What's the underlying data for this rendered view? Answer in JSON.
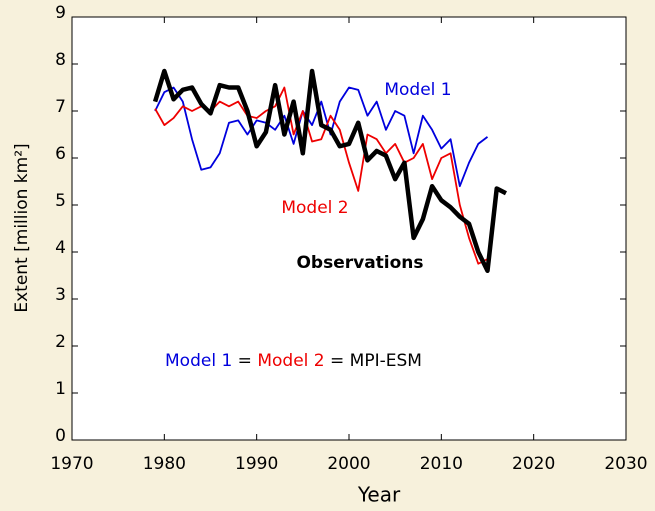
{
  "chart_data": {
    "type": "line",
    "xlabel": "Year",
    "ylabel": "Extent [million km²]",
    "x": [
      1979,
      1980,
      1981,
      1982,
      1983,
      1984,
      1985,
      1986,
      1987,
      1988,
      1989,
      1990,
      1991,
      1992,
      1993,
      1994,
      1995,
      1996,
      1997,
      1998,
      1999,
      2000,
      2001,
      2002,
      2003,
      2004,
      2005,
      2006,
      2007,
      2008,
      2009,
      2010,
      2011,
      2012,
      2013,
      2014,
      2015,
      2016,
      2017
    ],
    "series": [
      {
        "name": "Model 1",
        "color": "#0000dd",
        "width": 1.8,
        "values": [
          7.0,
          7.4,
          7.5,
          7.2,
          6.4,
          5.75,
          5.8,
          6.1,
          6.75,
          6.8,
          6.5,
          6.8,
          6.75,
          6.6,
          6.9,
          6.3,
          7.0,
          6.7,
          7.2,
          6.5,
          7.2,
          7.5,
          7.45,
          6.9,
          7.2,
          6.6,
          7.0,
          6.9,
          6.1,
          6.9,
          6.6,
          6.2,
          6.4,
          5.4,
          5.9,
          6.3,
          6.45,
          null,
          null
        ]
      },
      {
        "name": "Model 2",
        "color": "#ee0000",
        "width": 1.8,
        "values": [
          7.05,
          6.7,
          6.85,
          7.1,
          7.0,
          7.1,
          7.0,
          7.2,
          7.1,
          7.2,
          6.9,
          6.85,
          7.0,
          7.1,
          7.5,
          6.5,
          7.0,
          6.35,
          6.4,
          6.9,
          6.6,
          5.9,
          5.3,
          6.5,
          6.4,
          6.1,
          6.3,
          5.9,
          6.0,
          6.3,
          5.55,
          6.0,
          6.1,
          5.0,
          4.3,
          3.75,
          3.85,
          null,
          null
        ]
      },
      {
        "name": "Observations",
        "color": "#000000",
        "width": 4.5,
        "values": [
          7.2,
          7.85,
          7.25,
          7.45,
          7.5,
          7.15,
          6.95,
          7.55,
          7.5,
          7.5,
          7.0,
          6.25,
          6.55,
          7.55,
          6.5,
          7.2,
          6.1,
          7.85,
          6.7,
          6.6,
          6.25,
          6.3,
          6.75,
          5.95,
          6.15,
          6.05,
          5.55,
          5.9,
          4.3,
          4.7,
          5.4,
          5.1,
          4.95,
          4.75,
          4.6,
          4.0,
          3.6,
          5.35,
          5.25
        ]
      }
    ],
    "annotations": [
      {
        "text": "Model 1",
        "color": "#0000dd"
      },
      {
        "text": "Model 2",
        "color": "#ee0000"
      },
      {
        "text": "Observations",
        "color": "#000000"
      }
    ],
    "footer": [
      "Model 1",
      " = ",
      "Model 2",
      " = MPI-ESM"
    ],
    "xlim": [
      1970,
      2030
    ],
    "xticks": [
      1970,
      1980,
      1990,
      2000,
      2010,
      2020,
      2030
    ],
    "ylim": [
      0,
      9
    ],
    "yticks": [
      0,
      1,
      2,
      3,
      4,
      5,
      6,
      7,
      8,
      9
    ]
  }
}
